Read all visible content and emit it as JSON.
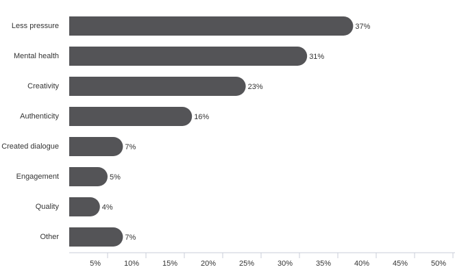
{
  "chart_data": {
    "type": "barh",
    "categories": [
      "Less pressure",
      "Mental health",
      "Creativity",
      "Authenticity",
      "Created dialogue",
      "Engagement",
      "Quality",
      "Other"
    ],
    "values": [
      37,
      31,
      23,
      16,
      7,
      5,
      4,
      7
    ],
    "value_labels": [
      "37%",
      "31%",
      "23%",
      "16%",
      "7%",
      "5%",
      "4%",
      "7%"
    ],
    "color": "#545457",
    "xlim": [
      0,
      50
    ],
    "xticks": [
      {
        "value": 5,
        "label": "5%"
      },
      {
        "value": 10,
        "label": "10%"
      },
      {
        "value": 15,
        "label": "15%"
      },
      {
        "value": 20,
        "label": "20%"
      },
      {
        "value": 25,
        "label": "25%"
      },
      {
        "value": 30,
        "label": "30%"
      },
      {
        "value": 35,
        "label": "35%"
      },
      {
        "value": 40,
        "label": "40%"
      },
      {
        "value": 45,
        "label": "45%"
      },
      {
        "value": 50,
        "label": "50%"
      }
    ]
  }
}
